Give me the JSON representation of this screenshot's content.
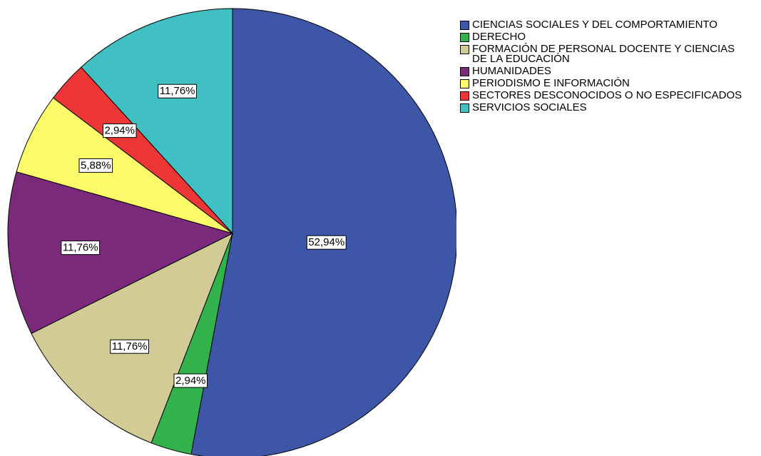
{
  "chart_data": {
    "type": "pie",
    "categories": [
      "CIENCIAS SOCIALES Y DEL COMPORTAMIENTO",
      "DERECHO",
      "FORMACIÓN DE PERSONAL DOCENTE Y CIENCIAS DE LA EDUCACIÓN",
      "HUMANIDADES",
      "PERIODISMO E INFORMACIÓN",
      "SECTORES DESCONOCIDOS O NO ESPECIFICADOS",
      "SERVICIOS SOCIALES"
    ],
    "values": [
      52.94,
      2.94,
      11.76,
      11.76,
      5.88,
      2.94,
      11.76
    ],
    "value_labels": [
      "52,94%",
      "2,94%",
      "11,76%",
      "11,76%",
      "5,88%",
      "2,94%",
      "11,76%"
    ],
    "colors": [
      "#3d56a8",
      "#31b24b",
      "#d3cb96",
      "#7b2a7b",
      "#fcfc6a",
      "#ee3636",
      "#40c0c3"
    ],
    "legend": "right"
  }
}
